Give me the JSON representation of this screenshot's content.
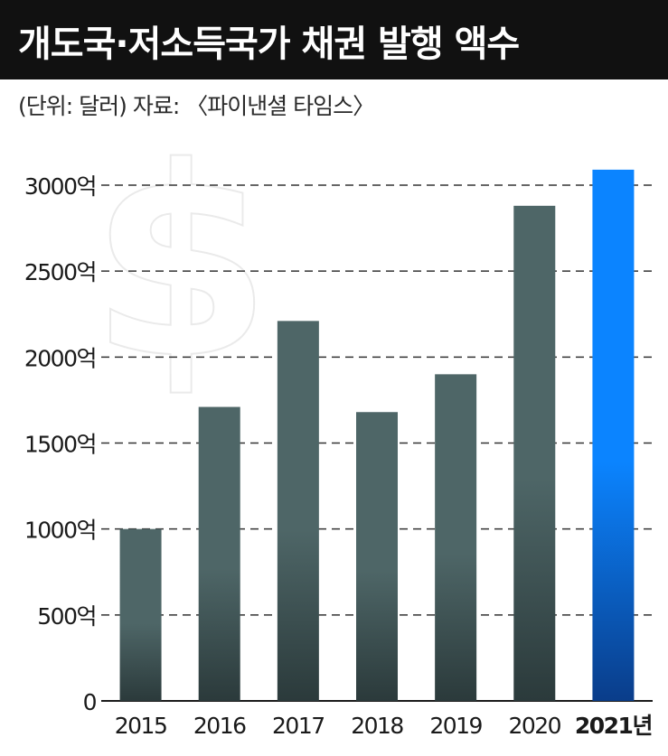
{
  "title": "개도국·저소득국가 채권 발행 액수",
  "subtitle": "(단위: 달러) 자료: 〈파이낸셜 타임스〉",
  "chart_data": {
    "type": "bar",
    "categories": [
      "2015",
      "2016",
      "2017",
      "2018",
      "2019",
      "2020",
      "2021년"
    ],
    "values": [
      1000,
      1710,
      2210,
      1680,
      1900,
      2880,
      3090
    ],
    "ylim": [
      0,
      3000
    ],
    "yticks": [
      0,
      500,
      1000,
      1500,
      2000,
      2500,
      3000
    ],
    "ytick_labels": [
      "0",
      "500억",
      "1000억",
      "1500억",
      "2000억",
      "2500억",
      "3000억"
    ],
    "grid": true,
    "highlight_category": "2021년",
    "colors": {
      "bar_top": "#4e6667",
      "bar_bottom": "#2b3a3b",
      "highlight_top": "#0b84ff",
      "highlight_bottom": "#0a3d8a",
      "grid": "#333333"
    },
    "decoration": "dollar-sign-icon"
  }
}
